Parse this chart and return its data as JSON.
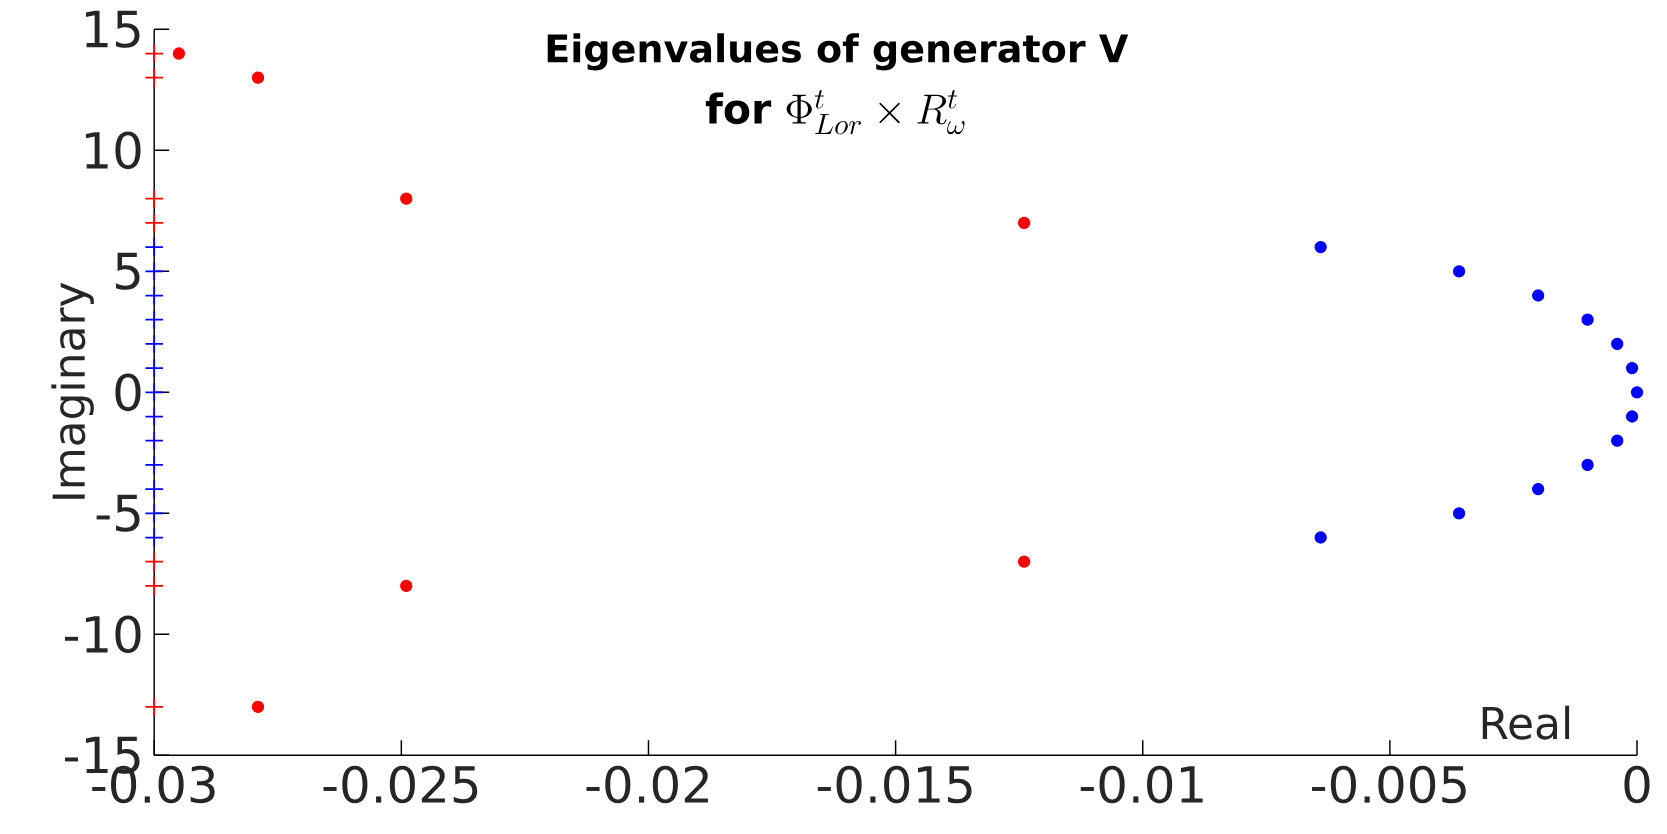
{
  "chart_data": {
    "type": "scatter",
    "title": "Eigenvalues of generator V",
    "subtitle": "\\textbf{for}\\ \\Phi^{t}_{Lor}\\times R^{t}_{\\omega}",
    "xlabel": "Real",
    "ylabel": "Imaginary",
    "xlim": [
      -0.03,
      0
    ],
    "ylim": [
      -15,
      15
    ],
    "xticks": [
      -0.03,
      -0.025,
      -0.02,
      -0.015,
      -0.01,
      -0.005,
      0
    ],
    "yticks": [
      -15,
      -10,
      -5,
      0,
      5,
      10,
      15
    ],
    "grid": false,
    "series": [
      {
        "color": "#ff0000",
        "marker": "circle",
        "x": [
          -0.0295,
          -0.0279,
          -0.0249,
          -0.0124,
          -0.0124,
          -0.0249,
          -0.0279
        ],
        "values": [
          14,
          13,
          8,
          7,
          -7,
          -8,
          -13
        ]
      },
      {
        "color": "#0000ff",
        "marker": "circle",
        "x": [
          -0.0064,
          -0.0036,
          -0.002,
          -0.001,
          -0.0004,
          -0.0001,
          0,
          -0.0001,
          -0.0004,
          -0.001,
          -0.002,
          -0.0036,
          -0.0064
        ],
        "values": [
          6,
          5,
          4,
          3,
          2,
          1,
          0,
          -1,
          -2,
          -3,
          -4,
          -5,
          -6
        ]
      },
      {
        "color": "#ff0000",
        "marker": "cross",
        "x": [
          -0.03,
          -0.03,
          -0.03,
          -0.03,
          -0.03,
          -0.03,
          -0.03
        ],
        "values": [
          14,
          13,
          8,
          7,
          -7,
          -8,
          -13
        ]
      },
      {
        "color": "#0000ff",
        "marker": "cross",
        "x": [
          -0.03,
          -0.03,
          -0.03,
          -0.03,
          -0.03,
          -0.03,
          -0.03,
          -0.03,
          -0.03,
          -0.03,
          -0.03,
          -0.03,
          -0.03
        ],
        "values": [
          6,
          5,
          4,
          3,
          2,
          1,
          0,
          -1,
          -2,
          -3,
          -4,
          -5,
          -6
        ]
      }
    ]
  }
}
